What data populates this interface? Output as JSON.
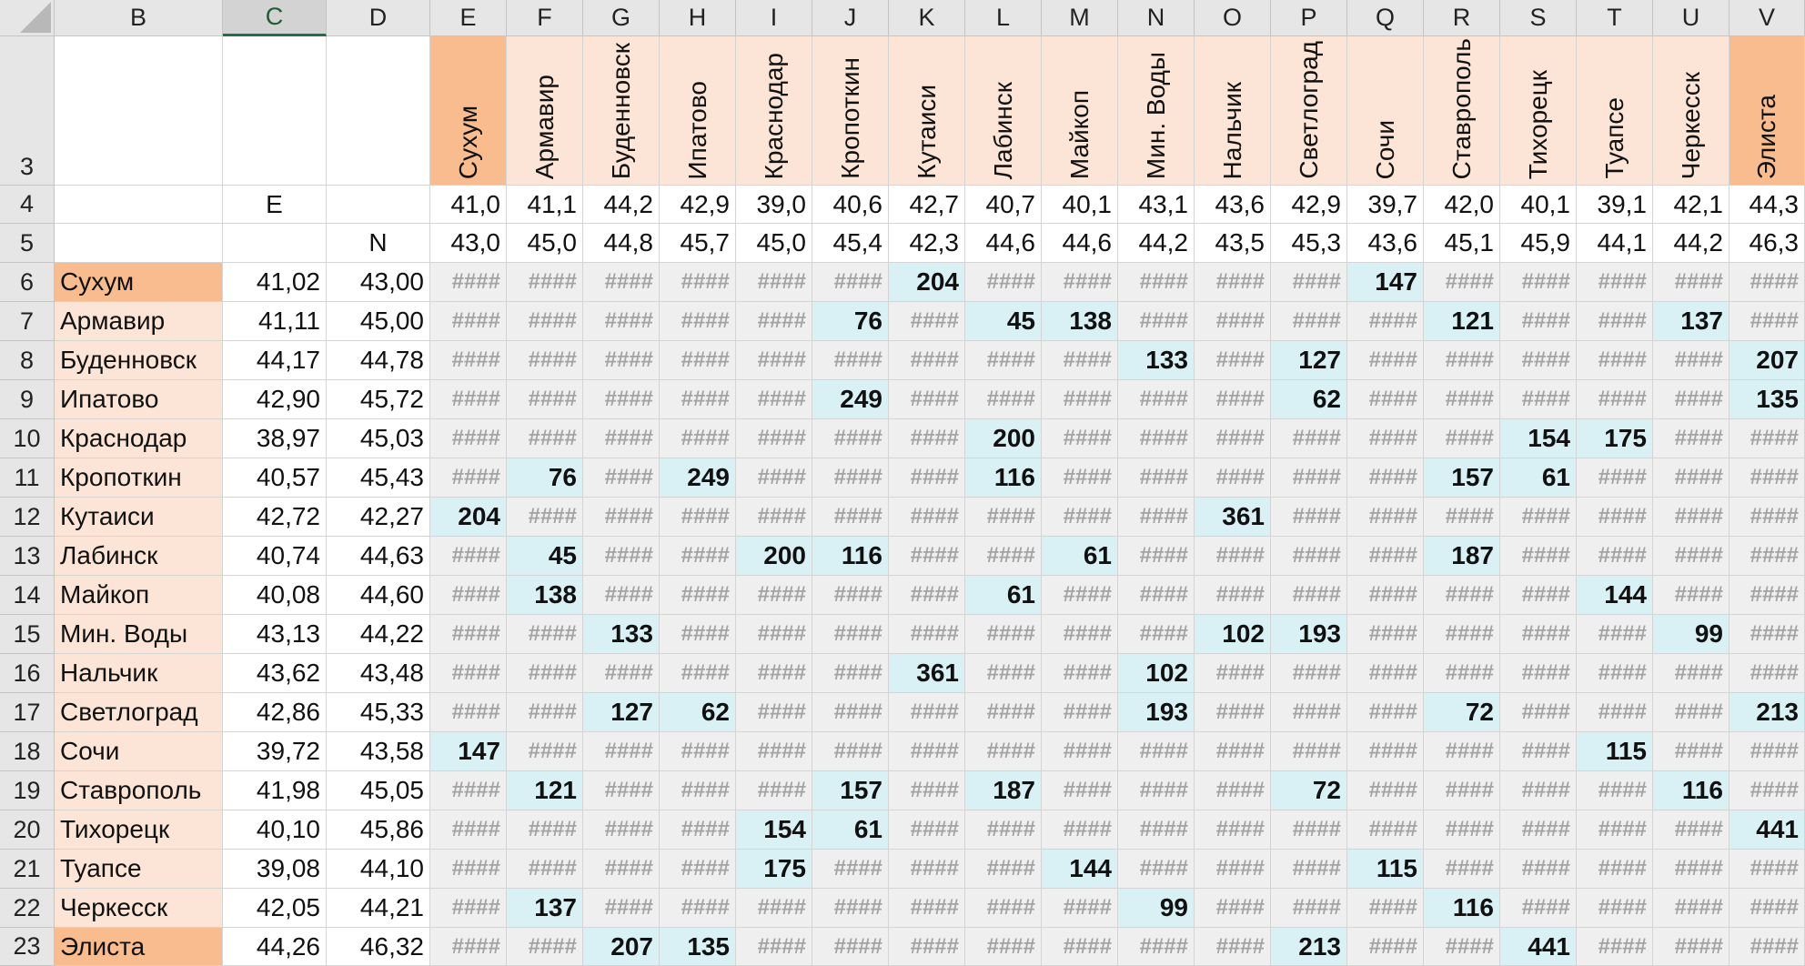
{
  "columns": [
    "B",
    "C",
    "D",
    "E",
    "F",
    "G",
    "H",
    "I",
    "J",
    "K",
    "L",
    "M",
    "N",
    "O",
    "P",
    "Q",
    "R",
    "S",
    "T",
    "U",
    "V"
  ],
  "selected_column": "C",
  "rows": [
    "3",
    "4",
    "5",
    "6",
    "7",
    "8",
    "9",
    "10",
    "11",
    "12",
    "13",
    "14",
    "15",
    "16",
    "17",
    "18",
    "19",
    "20",
    "21",
    "22",
    "23"
  ],
  "header": {
    "coord_e": "E",
    "coord_n": "N",
    "cities": [
      "Сухум",
      "Армавир",
      "Буденновск",
      "Ипатово",
      "Краснодар",
      "Кропоткин",
      "Кутаиси",
      "Лабинск",
      "Майкоп",
      "Мин. Воды",
      "Нальчик",
      "Светлоград",
      "Сочи",
      "Ставрополь",
      "Тихорецк",
      "Туапсе",
      "Черкесск",
      "Элиста"
    ],
    "row4_e": [
      "41,0",
      "41,1",
      "44,2",
      "42,9",
      "39,0",
      "40,6",
      "42,7",
      "40,7",
      "40,1",
      "43,1",
      "43,6",
      "42,9",
      "39,7",
      "42,0",
      "40,1",
      "39,1",
      "42,1",
      "44,3"
    ],
    "row5_n": [
      "43,0",
      "45,0",
      "44,8",
      "45,7",
      "45,0",
      "45,4",
      "42,3",
      "44,6",
      "44,6",
      "44,2",
      "43,5",
      "45,3",
      "43,6",
      "45,1",
      "45,9",
      "44,1",
      "44,2",
      "46,3"
    ]
  },
  "body": [
    {
      "city": "Сухум",
      "e": "41,02",
      "n": "43,00",
      "vals": [
        null,
        null,
        null,
        null,
        null,
        null,
        "204",
        null,
        null,
        null,
        null,
        null,
        "147",
        null,
        null,
        null,
        null,
        null
      ]
    },
    {
      "city": "Армавир",
      "e": "41,11",
      "n": "45,00",
      "vals": [
        null,
        null,
        null,
        null,
        null,
        "76",
        null,
        "45",
        "138",
        null,
        null,
        null,
        null,
        "121",
        null,
        null,
        "137",
        null
      ]
    },
    {
      "city": "Буденновск",
      "e": "44,17",
      "n": "44,78",
      "vals": [
        null,
        null,
        null,
        null,
        null,
        null,
        null,
        null,
        null,
        "133",
        null,
        "127",
        null,
        null,
        null,
        null,
        null,
        "207"
      ]
    },
    {
      "city": "Ипатово",
      "e": "42,90",
      "n": "45,72",
      "vals": [
        null,
        null,
        null,
        null,
        null,
        "249",
        null,
        null,
        null,
        null,
        null,
        "62",
        null,
        null,
        null,
        null,
        null,
        "135"
      ]
    },
    {
      "city": "Краснодар",
      "e": "38,97",
      "n": "45,03",
      "vals": [
        null,
        null,
        null,
        null,
        null,
        null,
        null,
        "200",
        null,
        null,
        null,
        null,
        null,
        null,
        "154",
        "175",
        null,
        null
      ]
    },
    {
      "city": "Кропоткин",
      "e": "40,57",
      "n": "45,43",
      "vals": [
        null,
        "76",
        null,
        "249",
        null,
        null,
        null,
        "116",
        null,
        null,
        null,
        null,
        null,
        "157",
        "61",
        null,
        null,
        null
      ]
    },
    {
      "city": "Кутаиси",
      "e": "42,72",
      "n": "42,27",
      "vals": [
        "204",
        null,
        null,
        null,
        null,
        null,
        null,
        null,
        null,
        null,
        "361",
        null,
        null,
        null,
        null,
        null,
        null,
        null
      ]
    },
    {
      "city": "Лабинск",
      "e": "40,74",
      "n": "44,63",
      "vals": [
        null,
        "45",
        null,
        null,
        "200",
        "116",
        null,
        null,
        "61",
        null,
        null,
        null,
        null,
        "187",
        null,
        null,
        null,
        null
      ]
    },
    {
      "city": "Майкоп",
      "e": "40,08",
      "n": "44,60",
      "vals": [
        null,
        "138",
        null,
        null,
        null,
        null,
        null,
        "61",
        null,
        null,
        null,
        null,
        null,
        null,
        null,
        "144",
        null,
        null
      ]
    },
    {
      "city": "Мин. Воды",
      "e": "43,13",
      "n": "44,22",
      "vals": [
        null,
        null,
        "133",
        null,
        null,
        null,
        null,
        null,
        null,
        null,
        "102",
        "193",
        null,
        null,
        null,
        null,
        "99",
        null
      ]
    },
    {
      "city": "Нальчик",
      "e": "43,62",
      "n": "43,48",
      "vals": [
        null,
        null,
        null,
        null,
        null,
        null,
        "361",
        null,
        null,
        "102",
        null,
        null,
        null,
        null,
        null,
        null,
        null,
        null
      ]
    },
    {
      "city": "Светлоград",
      "e": "42,86",
      "n": "45,33",
      "vals": [
        null,
        null,
        "127",
        "62",
        null,
        null,
        null,
        null,
        null,
        "193",
        null,
        null,
        null,
        "72",
        null,
        null,
        null,
        "213"
      ]
    },
    {
      "city": "Сочи",
      "e": "39,72",
      "n": "43,58",
      "vals": [
        "147",
        null,
        null,
        null,
        null,
        null,
        null,
        null,
        null,
        null,
        null,
        null,
        null,
        null,
        null,
        "115",
        null,
        null
      ]
    },
    {
      "city": "Ставрополь",
      "e": "41,98",
      "n": "45,05",
      "vals": [
        null,
        "121",
        null,
        null,
        null,
        "157",
        null,
        "187",
        null,
        null,
        null,
        "72",
        null,
        null,
        null,
        null,
        "116",
        null
      ]
    },
    {
      "city": "Тихорецк",
      "e": "40,10",
      "n": "45,86",
      "vals": [
        null,
        null,
        null,
        null,
        "154",
        "61",
        null,
        null,
        null,
        null,
        null,
        null,
        null,
        null,
        null,
        null,
        null,
        "441"
      ]
    },
    {
      "city": "Туапсе",
      "e": "39,08",
      "n": "44,10",
      "vals": [
        null,
        null,
        null,
        null,
        "175",
        null,
        null,
        null,
        "144",
        null,
        null,
        null,
        "115",
        null,
        null,
        null,
        null,
        null
      ]
    },
    {
      "city": "Черкесск",
      "e": "42,05",
      "n": "44,21",
      "vals": [
        null,
        "137",
        null,
        null,
        null,
        null,
        null,
        null,
        null,
        "99",
        null,
        null,
        null,
        "116",
        null,
        null,
        null,
        null
      ]
    },
    {
      "city": "Элиста",
      "e": "44,26",
      "n": "46,32",
      "vals": [
        null,
        null,
        "207",
        "135",
        null,
        null,
        null,
        null,
        null,
        null,
        null,
        "213",
        null,
        null,
        "441",
        null,
        null,
        null
      ]
    }
  ],
  "overflow_text": "####",
  "highlight_cities": [
    "Сухум",
    "Элиста"
  ],
  "colors": {
    "header_fill": "#fce4d6",
    "highlight_fill": "#f8bc8f",
    "value_fill": "#d9f1f5",
    "empty_fill": "#efefef",
    "selection_accent": "#1e7145"
  }
}
